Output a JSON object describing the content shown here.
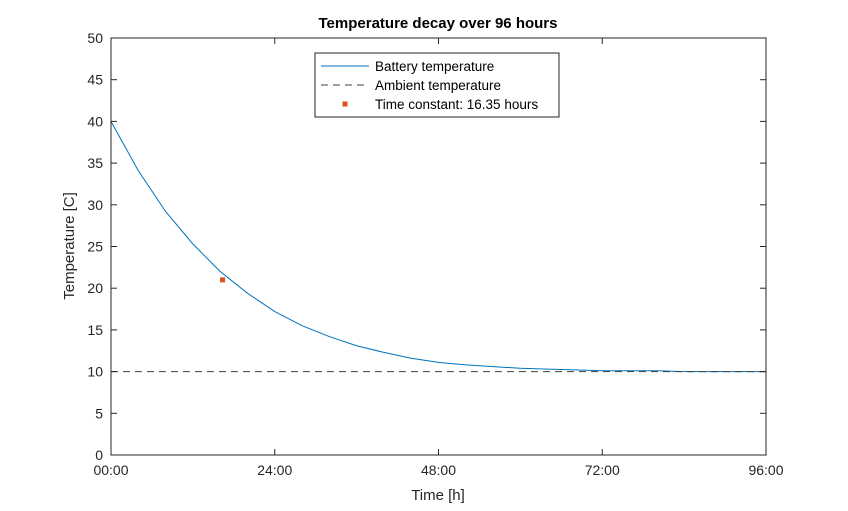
{
  "chart_data": {
    "type": "line",
    "title": "Temperature decay over 96 hours",
    "xlabel": "Time [h]",
    "ylabel": "Temperature [C]",
    "xlim": [
      0,
      96
    ],
    "ylim": [
      0,
      50
    ],
    "x_ticks": [
      0,
      24,
      48,
      72,
      96
    ],
    "x_tick_labels": [
      "00:00",
      "24:00",
      "48:00",
      "72:00",
      "96:00"
    ],
    "y_ticks": [
      0,
      5,
      10,
      15,
      20,
      25,
      30,
      35,
      40,
      45,
      50
    ],
    "y_tick_labels": [
      "0",
      "5",
      "10",
      "15",
      "20",
      "25",
      "30",
      "35",
      "40",
      "45",
      "50"
    ],
    "grid": false,
    "legend_position": "top-center",
    "series": [
      {
        "name": "Battery temperature",
        "style": "solid",
        "color": "#0072BD",
        "x": [
          0,
          4,
          8,
          12,
          16,
          20,
          24,
          28,
          32,
          36,
          40,
          44,
          48,
          52,
          56,
          60,
          64,
          68,
          72,
          76,
          80,
          84,
          88,
          92,
          96
        ],
        "y": [
          40.0,
          34.1,
          29.2,
          25.3,
          22.0,
          19.4,
          17.2,
          15.5,
          14.2,
          13.1,
          12.3,
          11.6,
          11.1,
          10.8,
          10.6,
          10.4,
          10.3,
          10.2,
          10.1,
          10.1,
          10.1,
          10.0,
          10.0,
          10.0,
          10.0
        ]
      },
      {
        "name": "Ambient temperature",
        "style": "dashed",
        "color": "#404040",
        "x": [
          0,
          96
        ],
        "y": [
          10,
          10
        ]
      },
      {
        "name": "Time constant: 16.35 hours",
        "style": "marker",
        "color": "#D95319",
        "x": [
          16.35
        ],
        "y": [
          21.0
        ]
      }
    ]
  }
}
